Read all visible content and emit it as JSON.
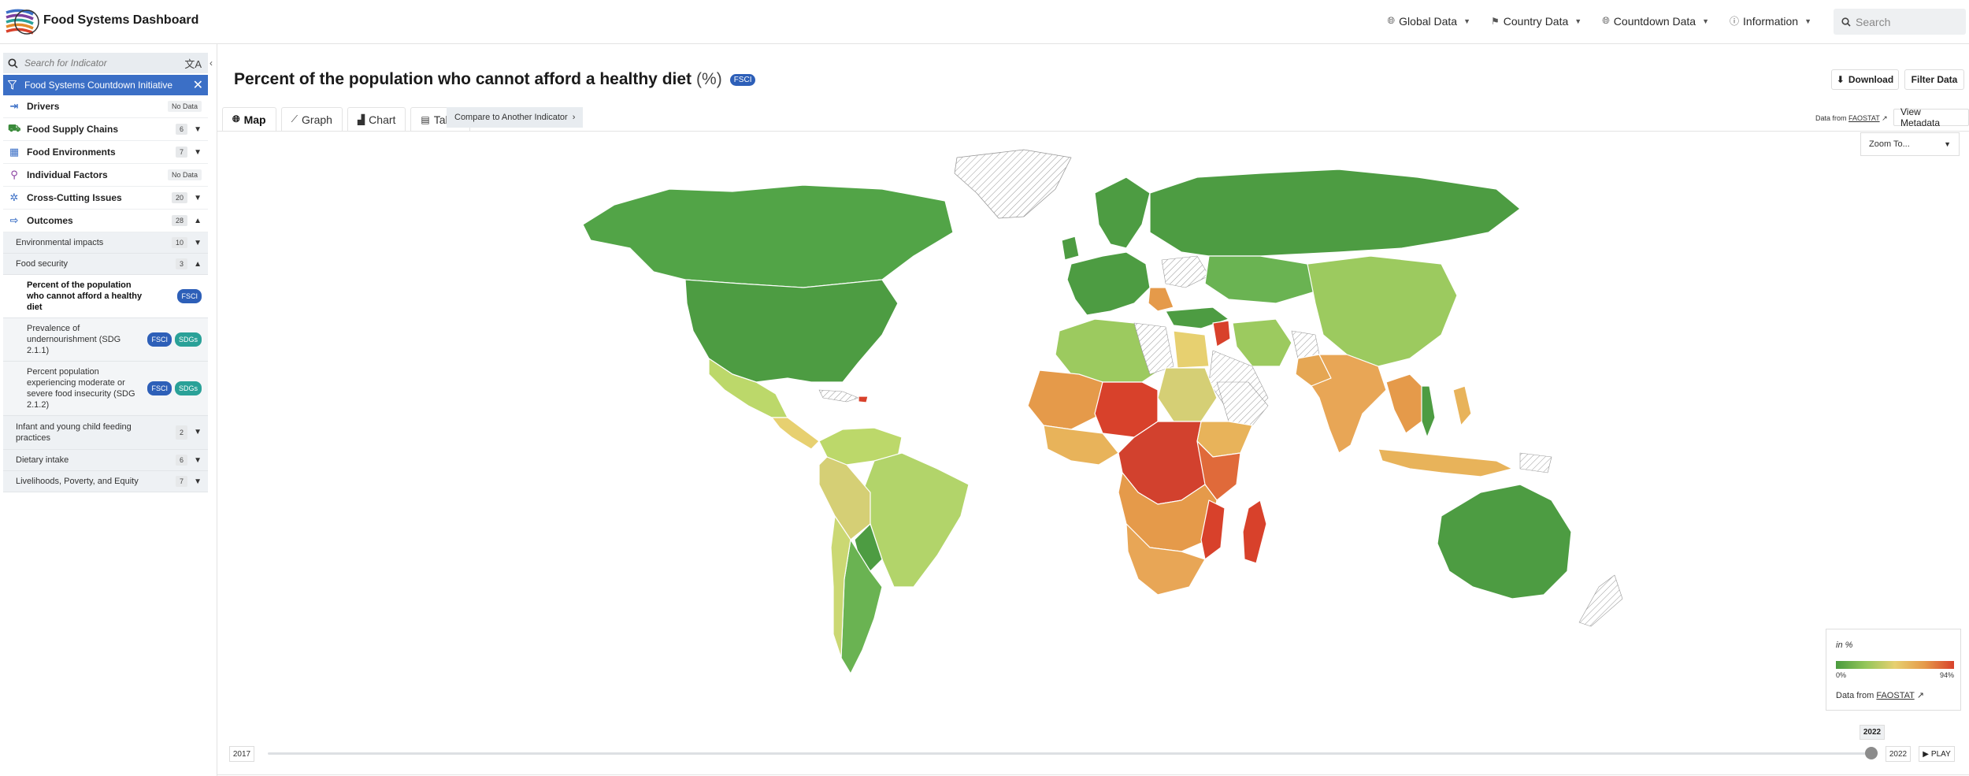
{
  "header": {
    "brand": "Food Systems Dashboard",
    "nav": [
      {
        "label": "Global Data",
        "icon": "globe-icon"
      },
      {
        "label": "Country Data",
        "icon": "flag-icon"
      },
      {
        "label": "Countdown Data",
        "icon": "globe-icon"
      },
      {
        "label": "Information",
        "icon": "info-icon"
      }
    ],
    "search_placeholder": "Search"
  },
  "sidebar": {
    "search_placeholder": "Search for Indicator",
    "filter_label": "Food Systems Countdown Initiative",
    "categories": [
      {
        "label": "Drivers",
        "badge": "No Data",
        "icon": "drivers-icon"
      },
      {
        "label": "Food Supply Chains",
        "badge": "6",
        "icon": "supply-chain-icon"
      },
      {
        "label": "Food Environments",
        "badge": "7",
        "icon": "store-icon"
      },
      {
        "label": "Individual Factors",
        "badge": "No Data",
        "icon": "person-pin-icon"
      },
      {
        "label": "Cross-Cutting Issues",
        "badge": "20",
        "icon": "cross-cutting-icon"
      },
      {
        "label": "Outcomes",
        "badge": "28",
        "icon": "outcomes-icon"
      }
    ],
    "subcategories": {
      "environmental": {
        "label": "Environmental impacts",
        "badge": "10"
      },
      "food_security": {
        "label": "Food security",
        "badge": "3"
      },
      "infant": {
        "label": "Infant and young child feeding practices",
        "badge": "2"
      },
      "dietary": {
        "label": "Dietary intake",
        "badge": "6"
      },
      "livelihoods": {
        "label": "Livelihoods, Poverty, and Equity",
        "badge": "7"
      }
    },
    "indicators": [
      {
        "label": "Percent of the population who cannot afford a healthy diet",
        "tags": [
          "FSCI"
        ]
      },
      {
        "label": "Prevalence of undernourishment (SDG 2.1.1)",
        "tags": [
          "FSCI",
          "SDGs"
        ]
      },
      {
        "label": "Percent population experiencing moderate or severe food insecurity (SDG 2.1.2)",
        "tags": [
          "FSCI",
          "SDGs"
        ]
      }
    ]
  },
  "main": {
    "title": "Percent of the population who cannot afford a healthy diet",
    "unit": "(%)",
    "title_tag": "FSCI",
    "download_label": "Download",
    "filter_label": "Filter Data",
    "tabs": [
      {
        "label": "Map",
        "icon": "globe-icon"
      },
      {
        "label": "Graph",
        "icon": "line-graph-icon"
      },
      {
        "label": "Chart",
        "icon": "bar-chart-icon"
      },
      {
        "label": "Table",
        "icon": "table-icon"
      }
    ],
    "compare_label": "Compare to Another Indicator",
    "data_from_prefix": "Data from",
    "data_source": "FAOSTAT",
    "view_metadata": "View Metadata",
    "zoom_label": "Zoom To...",
    "colors": {
      "accent": "#3b6fc6",
      "low": "#4a9a3e",
      "mid": "#e7d070",
      "high": "#d8412b"
    }
  },
  "legend": {
    "title": "in %",
    "min": "0%",
    "max": "94%",
    "source_prefix": "Data from",
    "source": "FAOSTAT"
  },
  "timeline": {
    "start": "2017",
    "end": "2022",
    "current": "2022",
    "play_label": "PLAY"
  }
}
